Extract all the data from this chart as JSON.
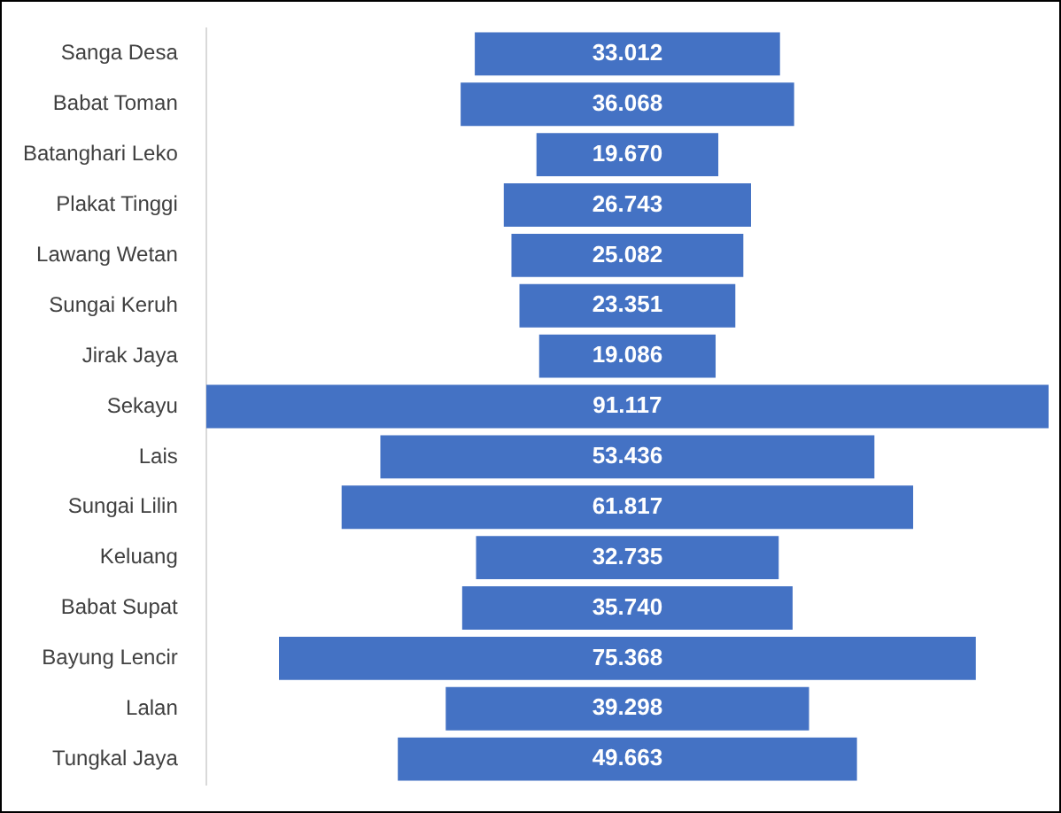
{
  "chart_data": {
    "type": "other",
    "categories": [
      "Sanga Desa",
      "Babat Toman",
      "Batanghari Leko",
      "Plakat Tinggi",
      "Lawang Wetan",
      "Sungai Keruh",
      "Jirak Jaya",
      "Sekayu",
      "Lais",
      "Sungai Lilin",
      "Keluang",
      "Babat Supat",
      "Bayung Lencir",
      "Lalan",
      "Tungkal Jaya"
    ],
    "values": [
      33012,
      36068,
      19670,
      26743,
      25082,
      23351,
      19086,
      91117,
      53436,
      61817,
      32735,
      35740,
      75368,
      39298,
      49663
    ],
    "value_labels": [
      "33.012",
      "36.068",
      "19.670",
      "26.743",
      "25.082",
      "23.351",
      "19.086",
      "91.117",
      "53.436",
      "61.817",
      "32.735",
      "35.740",
      "75.368",
      "39.298",
      "49.663"
    ],
    "color": "#4472c4"
  }
}
